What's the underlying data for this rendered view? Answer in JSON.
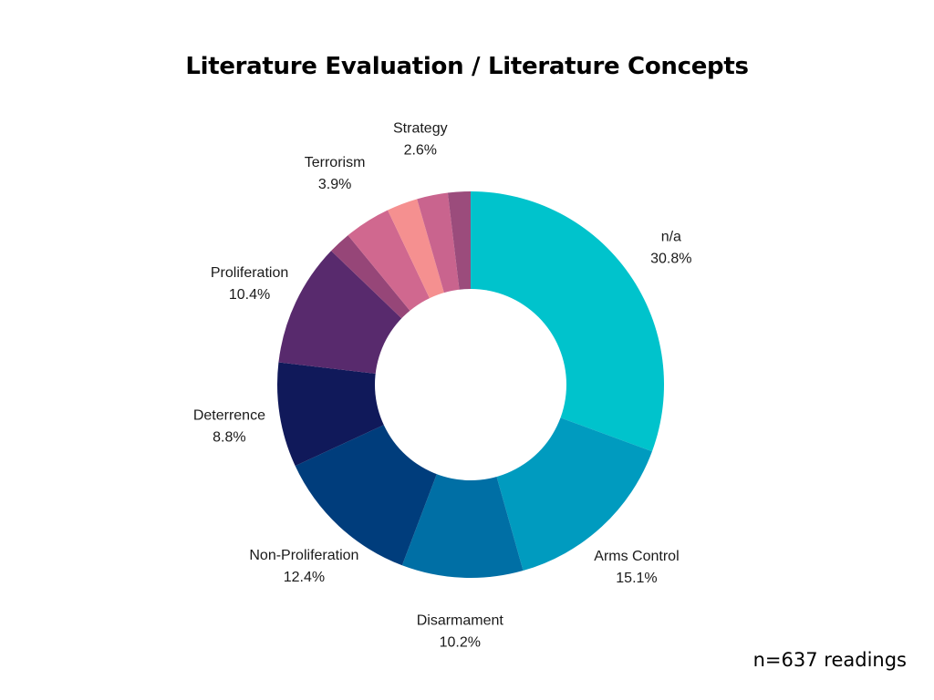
{
  "chart_data": {
    "type": "pie",
    "donut": true,
    "title": "Literature Evaluation / Literature Concepts",
    "start": "top",
    "direction": "clockwise",
    "slices": [
      {
        "label": "n/a",
        "value": 30.8,
        "value_label": "30.8%",
        "color": "#00c3cc",
        "show_label": true
      },
      {
        "label": "Arms Control",
        "value": 15.1,
        "value_label": "15.1%",
        "color": "#009bbf",
        "show_label": true
      },
      {
        "label": "Disarmament",
        "value": 10.2,
        "value_label": "10.2%",
        "color": "#006fa5",
        "show_label": true
      },
      {
        "label": "Non-Proliferation",
        "value": 12.4,
        "value_label": "12.4%",
        "color": "#003d7c",
        "show_label": true
      },
      {
        "label": "Deterrence",
        "value": 8.8,
        "value_label": "8.8%",
        "color": "#10195a",
        "show_label": true
      },
      {
        "label": "Proliferation",
        "value": 10.4,
        "value_label": "10.4%",
        "color": "#582a6d",
        "show_label": true
      },
      {
        "label": "",
        "value": 1.9,
        "value_label": "",
        "color": "#964678",
        "show_label": false
      },
      {
        "label": "Terrorism",
        "value": 3.9,
        "value_label": "3.9%",
        "color": "#d0688f",
        "show_label": true
      },
      {
        "label": "",
        "value": 2.6,
        "value_label": "",
        "color": "#f59090",
        "show_label": false
      },
      {
        "label": "Strategy",
        "value": 2.6,
        "value_label": "2.6%",
        "color": "#c9648e",
        "show_label": true
      },
      {
        "label": "",
        "value": 1.9,
        "value_label": "",
        "color": "#9b4c7c",
        "show_label": false
      }
    ]
  },
  "footnote": "n=637 readings"
}
